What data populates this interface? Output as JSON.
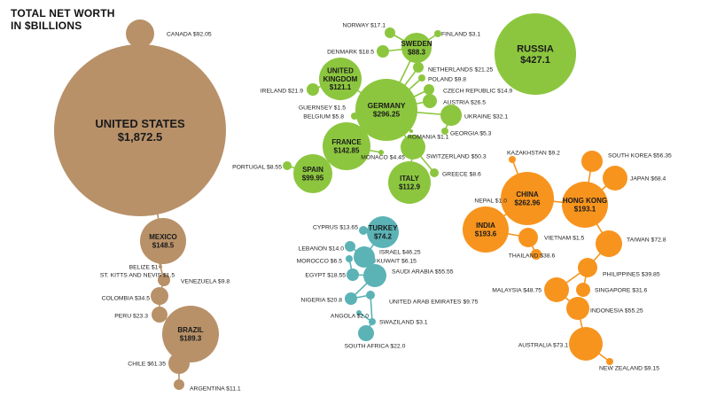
{
  "title_line1": "TOTAL NET WORTH",
  "title_line2": "IN $BILLIONS",
  "colors": {
    "americas": "#B89169",
    "europe": "#8CC63F",
    "middle_east_africa": "#5BB3B6",
    "asia_pacific": "#F7941E"
  },
  "chart_data": {
    "type": "bubble",
    "title": "TOTAL NET WORTH IN $BILLIONS",
    "unit": "$ billions",
    "groups": [
      {
        "region": "americas",
        "items": [
          {
            "label": "CANADA",
            "text": "$92.05",
            "value": 92.05
          },
          {
            "label": "UNITED STATES",
            "text": "$1,872.5",
            "value": 1872.5
          },
          {
            "label": "MEXICO",
            "text": "$148.5",
            "value": 148.5
          },
          {
            "label": "BELIZE",
            "text": "$1",
            "value": 1
          },
          {
            "label": "ST. KITTS AND NEVIS",
            "text": "$1.5",
            "value": 1.5
          },
          {
            "label": "VENEZUELA",
            "text": "$9.8",
            "value": 9.8
          },
          {
            "label": "COLOMBIA",
            "text": "$34.5",
            "value": 34.5
          },
          {
            "label": "PERU",
            "text": "$23.3",
            "value": 23.3
          },
          {
            "label": "BRAZIL",
            "text": "$189.3",
            "value": 189.3
          },
          {
            "label": "CHILE",
            "text": "$61.35",
            "value": 61.35
          },
          {
            "label": "ARGENTINA",
            "text": "$11.1",
            "value": 11.1
          }
        ]
      },
      {
        "region": "europe",
        "items": [
          {
            "label": "NORWAY",
            "text": "$17.1",
            "value": 17.1
          },
          {
            "label": "SWEDEN",
            "text": "$88.3",
            "value": 88.3
          },
          {
            "label": "FINLAND",
            "text": "$3.1",
            "value": 3.1
          },
          {
            "label": "DENMARK",
            "text": "$18.5",
            "value": 18.5
          },
          {
            "label": "UNITED KINGDOM",
            "text": "$121.1",
            "value": 121.1
          },
          {
            "label": "NETHERLANDS",
            "text": "$21.25",
            "value": 21.25
          },
          {
            "label": "POLAND",
            "text": "$9.8",
            "value": 9.8
          },
          {
            "label": "IRELAND",
            "text": "$21.9",
            "value": 21.9
          },
          {
            "label": "GERMANY",
            "text": "$296.25",
            "value": 296.25
          },
          {
            "label": "CZECH REPUBLIC",
            "text": "$14.9",
            "value": 14.9
          },
          {
            "label": "GUERNSEY",
            "text": "$1.5",
            "value": 1.5
          },
          {
            "label": "AUSTRIA",
            "text": "$26.5",
            "value": 26.5
          },
          {
            "label": "BELGIUM",
            "text": "$5.8",
            "value": 5.8
          },
          {
            "label": "UKRAINE",
            "text": "$32.1",
            "value": 32.1
          },
          {
            "label": "GEORGIA",
            "text": "$5.3",
            "value": 5.3
          },
          {
            "label": "ROMANIA",
            "text": "$1.1",
            "value": 1.1
          },
          {
            "label": "FRANCE",
            "text": "$142.85",
            "value": 142.85
          },
          {
            "label": "MONACO",
            "text": "$4.45",
            "value": 4.45
          },
          {
            "label": "SWITZERLAND",
            "text": "$50.3",
            "value": 50.3
          },
          {
            "label": "PORTUGAL",
            "text": "$8.55",
            "value": 8.55
          },
          {
            "label": "SPAIN",
            "text": "$99.95",
            "value": 99.95
          },
          {
            "label": "GREECE",
            "text": "$8.6",
            "value": 8.6
          },
          {
            "label": "ITALY",
            "text": "$112.9",
            "value": 112.9
          },
          {
            "label": "RUSSIA",
            "text": "$427.1",
            "value": 427.1
          }
        ]
      },
      {
        "region": "middle_east_africa",
        "items": [
          {
            "label": "CYPRUS",
            "text": "$13.65",
            "value": 13.65
          },
          {
            "label": "TURKEY",
            "text": "$74.2",
            "value": 74.2
          },
          {
            "label": "LEBANON",
            "text": "$14.0",
            "value": 14.0
          },
          {
            "label": "ISRAEL",
            "text": "$46.25",
            "value": 46.25
          },
          {
            "label": "MOROCCO",
            "text": "$6.5",
            "value": 6.5
          },
          {
            "label": "KUWAIT",
            "text": "$6.15",
            "value": 6.15
          },
          {
            "label": "EGYPT",
            "text": "$18.55",
            "value": 18.55
          },
          {
            "label": "SAUDI ARABIA",
            "text": "$55.55",
            "value": 55.55
          },
          {
            "label": "NIGERIA",
            "text": "$20.8",
            "value": 20.8
          },
          {
            "label": "UNITED ARAB EMIRATES",
            "text": "$9.75",
            "value": 9.75
          },
          {
            "label": "ANGOLA",
            "text": "$2.0",
            "value": 2.0
          },
          {
            "label": "SWAZILAND",
            "text": "$3.1",
            "value": 3.1
          },
          {
            "label": "SOUTH AFRICA",
            "text": "$22.0",
            "value": 22.0
          }
        ]
      },
      {
        "region": "asia_pacific",
        "items": [
          {
            "label": "KAZAKHSTAN",
            "text": "$9.2",
            "value": 9.2
          },
          {
            "label": "SOUTH KOREA",
            "text": "$56.35",
            "value": 56.35
          },
          {
            "label": "CHINA",
            "text": "$262.96",
            "value": 262.96
          },
          {
            "label": "JAPAN",
            "text": "$68.4",
            "value": 68.4
          },
          {
            "label": "NEPAL",
            "text": "$1.0",
            "value": 1.0
          },
          {
            "label": "HONG KONG",
            "text": "$193.1",
            "value": 193.1
          },
          {
            "label": "INDIA",
            "text": "$193.6",
            "value": 193.6
          },
          {
            "label": "VIETNAM",
            "text": "$1.5",
            "value": 1.5
          },
          {
            "label": "TAIWAN",
            "text": "$72.8",
            "value": 72.8
          },
          {
            "label": "THAILAND",
            "text": "$38.6",
            "value": 38.6
          },
          {
            "label": "PHILIPPINES",
            "text": "$39.85",
            "value": 39.85
          },
          {
            "label": "MALAYSIA",
            "text": "$48.75",
            "value": 48.75
          },
          {
            "label": "SINGAPORE",
            "text": "$31.6",
            "value": 31.6
          },
          {
            "label": "INDONESIA",
            "text": "$55.25",
            "value": 55.25
          },
          {
            "label": "AUSTRALIA",
            "text": "$73.1",
            "value": 73.1
          },
          {
            "label": "NEW ZEALAND",
            "text": "$9.15",
            "value": 9.15
          }
        ]
      }
    ]
  }
}
